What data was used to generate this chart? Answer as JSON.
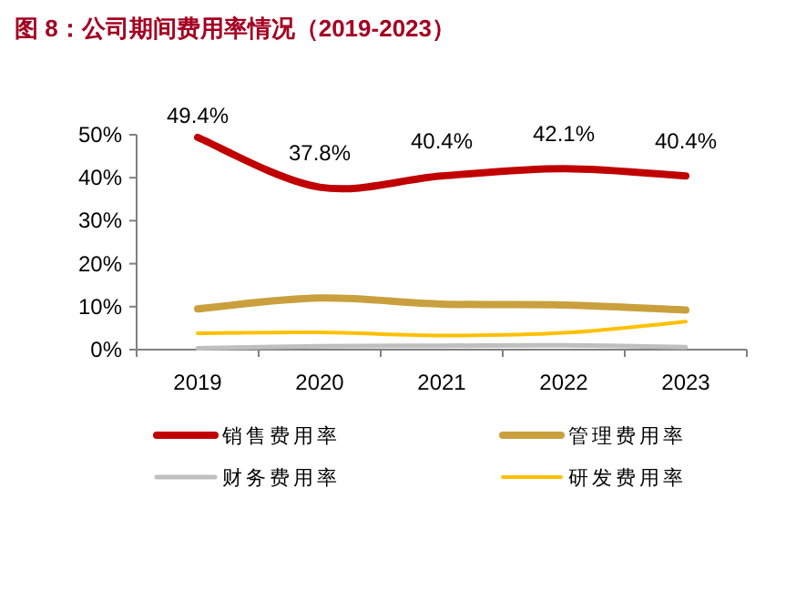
{
  "chart_data": {
    "type": "line",
    "title": "图 8：公司期间费用率情况（2019-2023）",
    "categories": [
      "2019",
      "2020",
      "2021",
      "2022",
      "2023"
    ],
    "series": [
      {
        "name": "销售费用率",
        "color": "#c00000",
        "values": [
          49.4,
          37.8,
          40.4,
          42.1,
          40.4
        ],
        "value_labels": [
          "49.4%",
          "37.8%",
          "40.4%",
          "42.1%",
          "40.4%"
        ]
      },
      {
        "name": "管理费用率",
        "color": "#c9a03d",
        "values": [
          9.5,
          12.0,
          10.6,
          10.4,
          9.2
        ]
      },
      {
        "name": "财务费用率",
        "color": "#bfbfbf",
        "values": [
          0.3,
          0.8,
          0.9,
          1.0,
          0.6
        ]
      },
      {
        "name": "研发费用率",
        "color": "#ffc000",
        "values": [
          3.8,
          4.0,
          3.3,
          3.9,
          6.5
        ]
      }
    ],
    "ylim": [
      0,
      50
    ],
    "yticks": [
      {
        "value": 0,
        "label": "0%"
      },
      {
        "value": 10,
        "label": "10%"
      },
      {
        "value": 20,
        "label": "20%"
      },
      {
        "value": 30,
        "label": "30%"
      },
      {
        "value": 40,
        "label": "40%"
      },
      {
        "value": 50,
        "label": "50%"
      }
    ],
    "grid": false,
    "legend": "bottom",
    "marker": "none",
    "line_style": "solid"
  }
}
